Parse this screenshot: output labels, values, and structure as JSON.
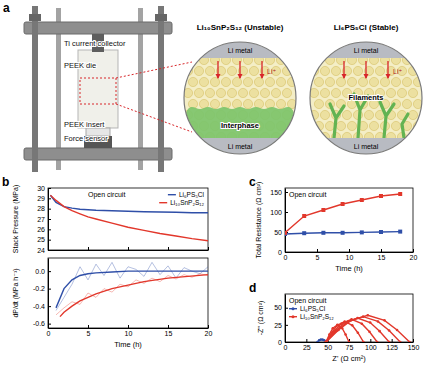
{
  "diagram": {
    "panel": "a",
    "apparatus_labels": [
      "Ti current collector",
      "PEEK die",
      "PEEK insert",
      "Force sensor"
    ],
    "cells": [
      {
        "title": "Li₁₀SnP₂S₁₂ (Unstable)",
        "electrodes": [
          "Li metal",
          "Li metal"
        ],
        "feature": "Interphase",
        "ion": "Li⁺"
      },
      {
        "title": "Li₆PS₅Cl (Stable)",
        "electrodes": [
          "Li metal",
          "Li metal"
        ],
        "feature": "Filaments",
        "ion": "Li⁺"
      }
    ]
  },
  "chart_data": [
    {
      "type": "line",
      "panel": "b",
      "annotation": "Open circuit",
      "ylabel": "Stack Pressure (MPa)",
      "x": [
        0.3,
        1,
        2,
        3,
        4,
        5,
        6,
        8,
        10,
        12,
        14,
        16,
        18,
        20
      ],
      "series": [
        {
          "name": "Li₆PS₅Cl",
          "color": "#2f4fa8",
          "values": [
            29.3,
            28.6,
            28.2,
            28.05,
            27.95,
            27.9,
            27.85,
            27.8,
            27.75,
            27.7,
            27.68,
            27.65,
            27.6,
            27.6
          ]
        },
        {
          "name": "Li₁₀SnP₂S₁₂",
          "color": "#e2372b",
          "values": [
            29.3,
            28.8,
            28.2,
            27.8,
            27.5,
            27.2,
            27.0,
            26.6,
            26.2,
            25.9,
            25.6,
            25.35,
            25.1,
            24.9
          ]
        }
      ],
      "xlim": [
        0,
        20
      ],
      "xticks": [
        0,
        5,
        10,
        15,
        20
      ],
      "ylim": [
        24,
        30
      ],
      "yticks": [
        24,
        25,
        26,
        27,
        28,
        29,
        30
      ],
      "legend": "top-right",
      "tick_labels": "y"
    },
    {
      "type": "line",
      "xlabel": "Time (h)",
      "ylabel": "dP/dt (MPa h⁻¹)",
      "series": [
        {
          "color": "#2f4fa8",
          "line_style": "thin",
          "x": [
            1,
            2,
            3,
            4,
            5,
            6,
            7,
            8,
            9,
            10,
            11,
            12,
            13,
            14,
            15,
            16,
            17,
            18,
            19,
            20
          ],
          "values": [
            -0.45,
            -0.3,
            -0.15,
            0.05,
            -0.1,
            0.08,
            -0.05,
            0.1,
            -0.08,
            0.05,
            0.02,
            -0.06,
            0.1,
            -0.04,
            0.06,
            -0.08,
            0.04,
            0.0,
            -0.03,
            0.05
          ]
        },
        {
          "color": "#e2372b",
          "line_style": "thin",
          "x": [
            1,
            2,
            3,
            4,
            5,
            6,
            7,
            8,
            9,
            10,
            11,
            12,
            13,
            14,
            15,
            16,
            17,
            18,
            19,
            20
          ],
          "values": [
            -0.5,
            -0.42,
            -0.35,
            -0.38,
            -0.25,
            -0.3,
            -0.2,
            -0.24,
            -0.15,
            -0.18,
            -0.1,
            -0.14,
            -0.08,
            -0.12,
            -0.05,
            -0.09,
            -0.04,
            -0.07,
            -0.03,
            -0.05
          ]
        },
        {
          "color": "#2f4fa8",
          "line_style": "solid",
          "x": [
            1,
            2,
            3,
            4,
            5,
            6,
            8,
            10,
            12,
            15,
            20
          ],
          "values": [
            -0.42,
            -0.2,
            -0.1,
            -0.05,
            -0.03,
            -0.02,
            -0.01,
            0,
            0,
            0,
            0
          ]
        },
        {
          "color": "#e2372b",
          "line_style": "solid",
          "x": [
            1.5,
            2,
            3,
            4,
            5,
            6,
            8,
            10,
            12,
            15,
            20
          ],
          "values": [
            -0.52,
            -0.47,
            -0.4,
            -0.34,
            -0.3,
            -0.26,
            -0.2,
            -0.16,
            -0.12,
            -0.08,
            -0.04
          ]
        }
      ],
      "xlim": [
        0,
        20
      ],
      "xticks": [
        0,
        5,
        10,
        15,
        20
      ],
      "ylim": [
        -0.65,
        0.15
      ],
      "yticks": [
        {
          "value": 0,
          "label": "0.0"
        },
        {
          "value": -0.2,
          "label": "-0.2"
        },
        {
          "value": -0.4,
          "label": "-0.4"
        },
        {
          "value": -0.6,
          "label": "-0.6"
        }
      ]
    },
    {
      "type": "line",
      "panel": "c",
      "annotation": "Open circuit",
      "xlabel": "Time (h)",
      "ylabel": "Total Resistance (Ω cm²)",
      "x": [
        0,
        3,
        6,
        9,
        12,
        15,
        18
      ],
      "series": [
        {
          "color": "#2f4fa8",
          "marker": "square",
          "values": [
            45,
            47,
            48,
            48,
            49,
            50,
            51
          ]
        },
        {
          "color": "#e2372b",
          "marker": "square",
          "values": [
            48,
            90,
            105,
            120,
            130,
            140,
            145
          ]
        }
      ],
      "xlim": [
        0,
        20
      ],
      "xticks": [
        0,
        5,
        10,
        15,
        20
      ],
      "ylim": [
        0,
        160
      ],
      "yticks": [
        0,
        50,
        100,
        150
      ]
    },
    {
      "type": "line",
      "panel": "d",
      "annotation": "Open circuit",
      "xlabel": "Z' (Ω cm²)",
      "ylabel": "-Z'' (Ω cm²)",
      "series": [
        {
          "name": "Li₆PS₅Cl",
          "color": "#2f4fa8",
          "marker": "circle",
          "x": [
            38,
            40,
            42,
            44,
            46,
            48
          ],
          "values": [
            0,
            2.5,
            3.5,
            3.5,
            2.5,
            0
          ]
        },
        {
          "name": "Li₁₀SnP₂S₁₂",
          "color": "#e2372b",
          "marker": "circle",
          "x": [
            48,
            52,
            56,
            61.5,
            67,
            71,
            75
          ],
          "values": [
            0,
            11,
            20,
            25,
            20,
            11,
            0
          ]
        },
        {
          "color": "#e2372b",
          "marker": "circle",
          "x": [
            48,
            54.6,
            61.2,
            70,
            78.8,
            85.4,
            92
          ],
          "values": [
            0,
            13.5,
            24.3,
            30,
            24.3,
            13.5,
            0
          ]
        },
        {
          "color": "#e2372b",
          "marker": "circle",
          "x": [
            48,
            57,
            66,
            78,
            90,
            99,
            108
          ],
          "values": [
            0,
            14.9,
            26.7,
            33,
            26.7,
            14.9,
            0
          ]
        },
        {
          "color": "#e2372b",
          "marker": "circle",
          "x": [
            48,
            59.1,
            70.2,
            85,
            99.8,
            110.9,
            122
          ],
          "values": [
            0,
            15.8,
            28.4,
            35,
            28.4,
            15.8,
            0
          ]
        },
        {
          "color": "#e2372b",
          "marker": "circle",
          "x": [
            48,
            61,
            74.1,
            91.5,
            108.9,
            122,
            135
          ],
          "values": [
            0,
            16.7,
            30,
            37,
            30,
            16.7,
            0
          ]
        },
        {
          "color": "#e2372b",
          "marker": "circle",
          "x": [
            48,
            62.7,
            77.4,
            97,
            116.6,
            131.3,
            146
          ],
          "values": [
            0,
            17.6,
            31.6,
            39,
            31.6,
            17.6,
            0
          ]
        }
      ],
      "xlim": [
        0,
        150
      ],
      "xticks": [
        0,
        25,
        50,
        75,
        100,
        125,
        150
      ],
      "ylim": [
        0,
        70
      ],
      "yticks": [
        0,
        25,
        50
      ],
      "legend": "top-left"
    }
  ]
}
